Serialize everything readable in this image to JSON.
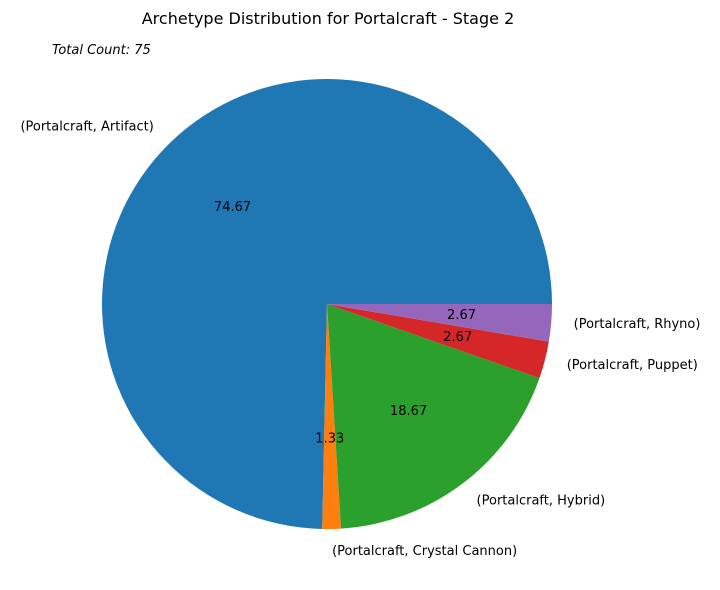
{
  "chart_data": {
    "type": "pie",
    "title": "Archetype Distribution for Portalcraft - Stage 2",
    "annotation": "Total Count: 75",
    "slices": [
      {
        "label": "(Portalcraft, Artifact)",
        "value": 74.67,
        "display": "74.67",
        "color": "#1f77b4"
      },
      {
        "label": "(Portalcraft, Crystal Cannon)",
        "value": 1.33,
        "display": "1.33",
        "color": "#ff7f0e"
      },
      {
        "label": "(Portalcraft, Hybrid)",
        "value": 18.67,
        "display": "18.67",
        "color": "#2ca02c"
      },
      {
        "label": "(Portalcraft, Puppet)",
        "value": 2.67,
        "display": "2.67",
        "color": "#d62728"
      },
      {
        "label": "(Portalcraft, Rhyno)",
        "value": 2.67,
        "display": "2.67",
        "color": "#9467bd"
      }
    ],
    "start_angle_deg": 0,
    "direction": "counterclockwise",
    "legend": "none"
  }
}
